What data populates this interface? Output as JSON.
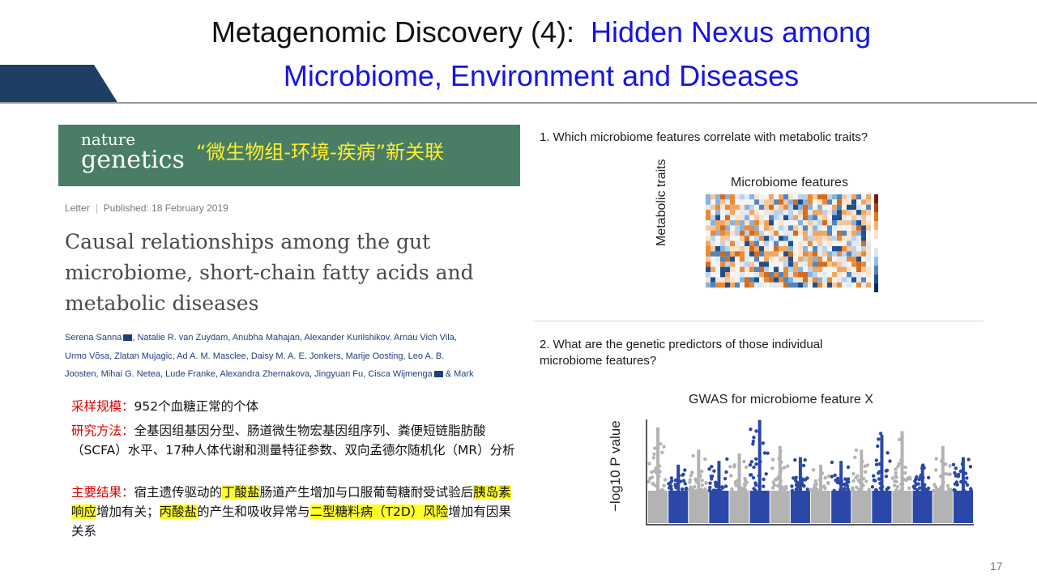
{
  "slide": {
    "title_part1": "Metagenomic Discovery (4):",
    "title_part2": "Hidden Nexus among",
    "title_line2": "Microbiome, Environment and Diseases",
    "page_number": "17"
  },
  "paper": {
    "journal_line1": "nature",
    "journal_line2": "genetics",
    "banner_cn": "“微生物组-环境-疾病”新关联",
    "article_type": "Letter",
    "published": "Published: 18 February 2019",
    "title": "Causal relationships among the gut microbiome, short-chain fatty acids and metabolic diseases",
    "authors_line1": "Serena Sanna",
    "authors_line1b": ", Natalie R. van Zuydam, Anubha Mahajan, Alexander Kurilshikov, Arnau Vich Vila,",
    "authors_line2": "Urmo Võsa, Zlatan Mujagic, Ad A. M. Masclee, Daisy M. A. E. Jonkers, Marije Oosting, Leo A. B.",
    "authors_line3": "Joosten, Mihai G. Netea, Lude Franke, Alexandra Zhernakova, Jingyuan Fu, Cisca Wijmenga",
    "authors_line3b": "& Mark"
  },
  "summary": {
    "sample_label": "采样规模",
    "sample_text": "952个血糖正常的个体",
    "method_label": "研究方法",
    "method_text": "全基因组基因分型、肠道微生物宏基因组序列、粪便短链脂肪酸（SCFA）水平、17种人体代谢和测量特征参数、双向孟德尔随机化（MR）分析",
    "result_label": "主要结果",
    "result_t1": "宿主遗传驱动的",
    "result_h1": "丁酸盐",
    "result_t2": "肠道产生增加与口服葡萄糖耐受试验后",
    "result_h2": "胰岛素响应",
    "result_t3": "增加有关；",
    "result_h3": "丙酸盐",
    "result_t4": "的产生和吸收异常与",
    "result_h4": "二型糖料病（T2D）风险",
    "result_t5": "增加有因果关系"
  },
  "figure": {
    "q1": "1. Which microbiome features correlate with metabolic traits?",
    "heatmap_title": "Microbiome features",
    "heatmap_ylabel": "Metabolic traits",
    "q2_line1": "2. What are the genetic predictors of those individual",
    "q2_line2": "microbiome features?",
    "gwas_title": "GWAS for microbiome feature X",
    "gwas_ylabel": "−log10 P value"
  },
  "colors": {
    "title_blue": "#1414e6",
    "banner_green": "#4a7d66",
    "banner_text": "#ffef2a",
    "label_red": "#e00000",
    "highlight": "#ffff2a",
    "corner_navy": "#1e3f64",
    "manhattan_blue": "#2b48a8",
    "manhattan_gray": "#b3b3b3"
  }
}
